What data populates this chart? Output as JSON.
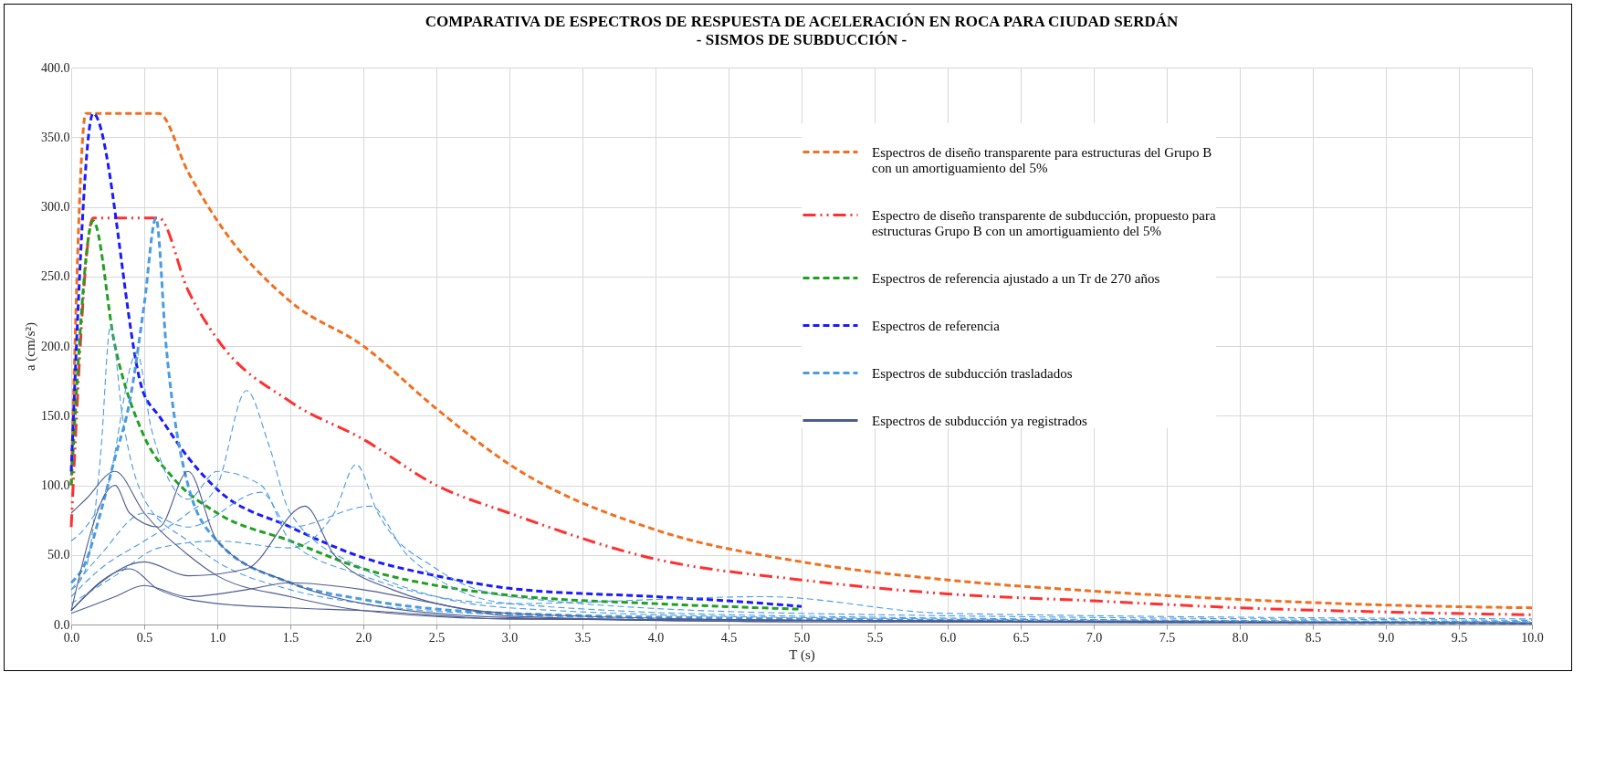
{
  "chart_data": {
    "type": "line",
    "title": "COMPARATIVA DE ESPECTROS DE RESPUESTA DE ACELERACIÓN EN ROCA PARA CIUDAD SERDÁN",
    "subtitle": "- SISMOS DE SUBDUCCIÓN -",
    "xlabel": "T (s)",
    "ylabel": "a (cm/s²)",
    "xlim": [
      0,
      10
    ],
    "ylim": [
      0,
      400
    ],
    "grid": true,
    "legend": "top right",
    "xticks": [
      {
        "value": 0,
        "label": "0.0"
      },
      {
        "value": 0.5,
        "label": "0.5"
      },
      {
        "value": 1,
        "label": "1.0"
      },
      {
        "value": 1.5,
        "label": "1.5"
      },
      {
        "value": 2,
        "label": "2.0"
      },
      {
        "value": 2.5,
        "label": "2.5"
      },
      {
        "value": 3,
        "label": "3.0"
      },
      {
        "value": 3.5,
        "label": "3.5"
      },
      {
        "value": 4,
        "label": "4.0"
      },
      {
        "value": 4.5,
        "label": "4.5"
      },
      {
        "value": 5,
        "label": "5.0"
      },
      {
        "value": 5.5,
        "label": "5.5"
      },
      {
        "value": 6,
        "label": "6.0"
      },
      {
        "value": 6.5,
        "label": "6.5"
      },
      {
        "value": 7,
        "label": "7.0"
      },
      {
        "value": 7.5,
        "label": "7.5"
      },
      {
        "value": 8,
        "label": "8.0"
      },
      {
        "value": 8.5,
        "label": "8.5"
      },
      {
        "value": 9,
        "label": "9.0"
      },
      {
        "value": 9.5,
        "label": "9.5"
      },
      {
        "value": 10,
        "label": "10.0"
      }
    ],
    "yticks": [
      {
        "value": 0,
        "label": "0.0"
      },
      {
        "value": 50,
        "label": "50.0"
      },
      {
        "value": 100,
        "label": "100.0"
      },
      {
        "value": 150,
        "label": "150.0"
      },
      {
        "value": 200,
        "label": "200.0"
      },
      {
        "value": 250,
        "label": "250.0"
      },
      {
        "value": 300,
        "label": "300.0"
      },
      {
        "value": 350,
        "label": "350.0"
      },
      {
        "value": 400,
        "label": "400.0"
      }
    ],
    "series": [
      {
        "name": "Espectros de diseño transparente para estructuras del Grupo B con un amortiguamiento del 5%",
        "color": "#f07020",
        "line_style": "dashed",
        "x": [
          0,
          0.1,
          0.6,
          0.8,
          1,
          1.5,
          2,
          2.5,
          3,
          4,
          5,
          6,
          7,
          8,
          9,
          10
        ],
        "values": [
          100,
          367,
          367,
          325,
          290,
          232,
          200,
          155,
          115,
          68,
          45,
          32,
          24,
          18,
          14,
          12
        ]
      },
      {
        "name": "Espectro de diseño transparente de subducción, propuesto para estructuras Grupo B con un amortiguamiento del 5%",
        "color": "#ff3030",
        "line_style": "dashdot",
        "x": [
          0,
          0.15,
          0.6,
          0.8,
          1,
          1.5,
          2,
          2.5,
          3,
          4,
          5,
          6,
          7,
          8,
          9,
          10
        ],
        "values": [
          70,
          292,
          292,
          240,
          205,
          160,
          133,
          100,
          80,
          47,
          32,
          22,
          17,
          12,
          9,
          7
        ]
      },
      {
        "name": "Espectros de referencia ajustado a un Tr de 270 años",
        "color": "#20a020",
        "line_style": "dashed",
        "x": [
          0,
          0.15,
          0.3,
          0.5,
          0.7,
          1,
          1.5,
          2,
          2.5,
          3,
          4,
          5
        ],
        "values": [
          100,
          290,
          200,
          135,
          105,
          80,
          60,
          40,
          28,
          21,
          15,
          11
        ]
      },
      {
        "name": "Espectros de referencia",
        "color": "#1a1aff",
        "line_style": "dashed",
        "x": [
          0,
          0.15,
          0.5,
          0.6,
          0.8,
          1,
          1.5,
          2,
          2.5,
          3,
          4,
          4.5,
          5
        ],
        "values": [
          110,
          367,
          165,
          150,
          120,
          97,
          70,
          48,
          35,
          26,
          20,
          17,
          13
        ]
      },
      {
        "name": "Espectros de subducción trasladados",
        "color": "#4a9be0",
        "line_style": "dashed",
        "x": [
          0,
          0.1,
          0.2,
          0.3,
          0.4,
          0.5,
          0.58,
          0.65,
          0.8,
          1,
          1.5,
          2,
          3,
          5,
          10
        ],
        "values": [
          30,
          45,
          80,
          120,
          160,
          230,
          292,
          200,
          100,
          60,
          30,
          18,
          8,
          4,
          1
        ]
      },
      {
        "color": "#4a9be0",
        "line_style": "dashed",
        "x": [
          0,
          0.1,
          0.2,
          0.27,
          0.35,
          0.5,
          0.8,
          1,
          1.5,
          2,
          3,
          5,
          10
        ],
        "values": [
          25,
          40,
          120,
          215,
          150,
          90,
          60,
          45,
          25,
          15,
          7,
          3,
          1
        ]
      },
      {
        "color": "#4a9be0",
        "line_style": "dashed",
        "x": [
          0,
          0.2,
          0.5,
          0.8,
          1,
          1.2,
          1.35,
          1.5,
          2,
          2.5,
          3,
          5,
          10
        ],
        "values": [
          20,
          40,
          60,
          80,
          100,
          168,
          130,
          80,
          40,
          20,
          12,
          5,
          2
        ]
      },
      {
        "color": "#4a9be0",
        "line_style": "dashed",
        "x": [
          0,
          0.3,
          0.6,
          1,
          1.5,
          1.8,
          1.95,
          2.1,
          2.5,
          3,
          5,
          10
        ],
        "values": [
          15,
          35,
          55,
          60,
          55,
          80,
          115,
          80,
          40,
          20,
          8,
          3
        ]
      },
      {
        "color": "#4a9be0",
        "line_style": "dashed",
        "x": [
          0,
          0.1,
          0.25,
          0.45,
          0.55,
          0.8,
          1,
          1.3,
          1.5,
          2,
          3,
          4.75,
          6,
          10
        ],
        "values": [
          60,
          70,
          100,
          195,
          140,
          90,
          110,
          100,
          60,
          35,
          15,
          20,
          8,
          4
        ]
      },
      {
        "color": "#4a9be0",
        "line_style": "dashed",
        "x": [
          0,
          0.2,
          0.5,
          0.8,
          1.3,
          1.5,
          2.05,
          2.3,
          3,
          5,
          10
        ],
        "values": [
          25,
          50,
          80,
          70,
          95,
          70,
          85,
          50,
          15,
          6,
          2
        ]
      },
      {
        "name": "Espectros de subducción ya registrados",
        "color": "#4c5c90",
        "line_style": "solid",
        "x": [
          0,
          0.3,
          0.4,
          0.6,
          0.8,
          1,
          1.5,
          2,
          3,
          5,
          10
        ],
        "values": [
          10,
          100,
          80,
          70,
          110,
          60,
          30,
          15,
          5,
          2,
          1
        ]
      },
      {
        "color": "#4c5c90",
        "line_style": "solid",
        "x": [
          0,
          0.2,
          0.5,
          0.8,
          1.2,
          1.6,
          1.8,
          2.2,
          3,
          5,
          10
        ],
        "values": [
          10,
          30,
          45,
          35,
          40,
          85,
          50,
          25,
          8,
          3,
          1
        ]
      },
      {
        "color": "#4c5c90",
        "line_style": "solid",
        "x": [
          0,
          0.3,
          0.5,
          0.8,
          1.2,
          1.5,
          2,
          2.5,
          3,
          5,
          10
        ],
        "values": [
          8,
          20,
          28,
          20,
          25,
          30,
          25,
          15,
          6,
          2,
          1
        ]
      },
      {
        "color": "#4c5c90",
        "line_style": "solid",
        "x": [
          0,
          0.1,
          0.3,
          0.5,
          0.8,
          1,
          1.5,
          2,
          3,
          10
        ],
        "values": [
          80,
          90,
          110,
          80,
          50,
          35,
          20,
          10,
          4,
          1
        ]
      },
      {
        "color": "#4c5c90",
        "line_style": "solid",
        "x": [
          0,
          0.4,
          0.6,
          1,
          1.5,
          2,
          3,
          10
        ],
        "values": [
          10,
          40,
          25,
          15,
          12,
          10,
          4,
          0.5
        ]
      }
    ]
  }
}
